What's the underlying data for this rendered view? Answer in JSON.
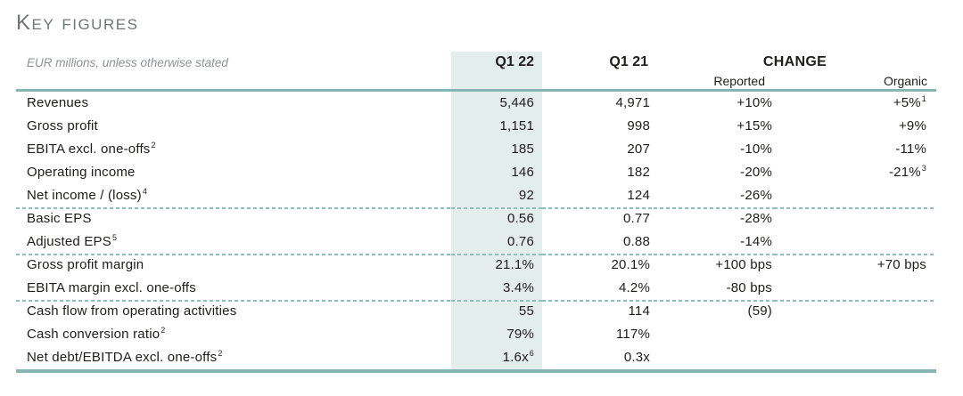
{
  "page": {
    "title": "Key figures",
    "unit_note": "EUR millions, unless otherwise stated"
  },
  "colors": {
    "accent_teal_line": "#87b5b2",
    "dashed_separator_teal": "#8fbfbc",
    "highlight_column_bg": "#e3edec",
    "text": "#1d1d1b",
    "muted_gray": "#8f9294"
  },
  "table": {
    "headers": {
      "q122": "Q1 22",
      "q121": "Q1 21",
      "change": "CHANGE",
      "reported": "Reported",
      "organic": "Organic"
    },
    "rows": [
      {
        "label": "Revenues",
        "q122": "5,446",
        "q121": "4,971",
        "reported": "+10%",
        "organic": "+5%",
        "organic_sup": "1"
      },
      {
        "label": "Gross profit",
        "q122": "1,151",
        "q121": "998",
        "reported": "+15%",
        "organic": "+9%"
      },
      {
        "label": "EBITA excl. one-offs",
        "label_sup": "2",
        "q122": "185",
        "q121": "207",
        "reported": "-10%",
        "organic": "-11%"
      },
      {
        "label": "Operating income",
        "q122": "146",
        "q121": "182",
        "reported": "-20%",
        "organic": "-21%",
        "organic_sup": "3"
      },
      {
        "label": "Net income / (loss)",
        "label_sup": "4",
        "q122": "92",
        "q121": "124",
        "reported": "-26%",
        "organic": ""
      },
      {
        "label": "Basic EPS",
        "q122": "0.56",
        "q121": "0.77",
        "reported": "-28%",
        "organic": "",
        "section_start": true
      },
      {
        "label": "Adjusted EPS",
        "label_sup": "5",
        "q122": "0.76",
        "q121": "0.88",
        "reported": "-14%",
        "organic": ""
      },
      {
        "label": "Gross profit margin",
        "q122": "21.1%",
        "q121": "20.1%",
        "reported": "+100 bps",
        "organic": "+70 bps",
        "section_start": true
      },
      {
        "label": "EBITA margin excl. one-offs",
        "q122": "3.4%",
        "q121": "4.2%",
        "reported": "-80 bps",
        "organic": ""
      },
      {
        "label": "Cash flow from operating activities",
        "q122": "55",
        "q121": "114",
        "reported": "(59)",
        "organic": "",
        "section_start": true
      },
      {
        "label": "Cash conversion ratio",
        "label_sup": "2",
        "q122": "79%",
        "q121": "117%",
        "reported": "",
        "organic": ""
      },
      {
        "label": "Net debt/EBITDA excl. one-offs",
        "label_sup": "2",
        "q122": "1.6x",
        "q122_sup": "6",
        "q121": "0.3x",
        "reported": "",
        "organic": ""
      }
    ]
  }
}
